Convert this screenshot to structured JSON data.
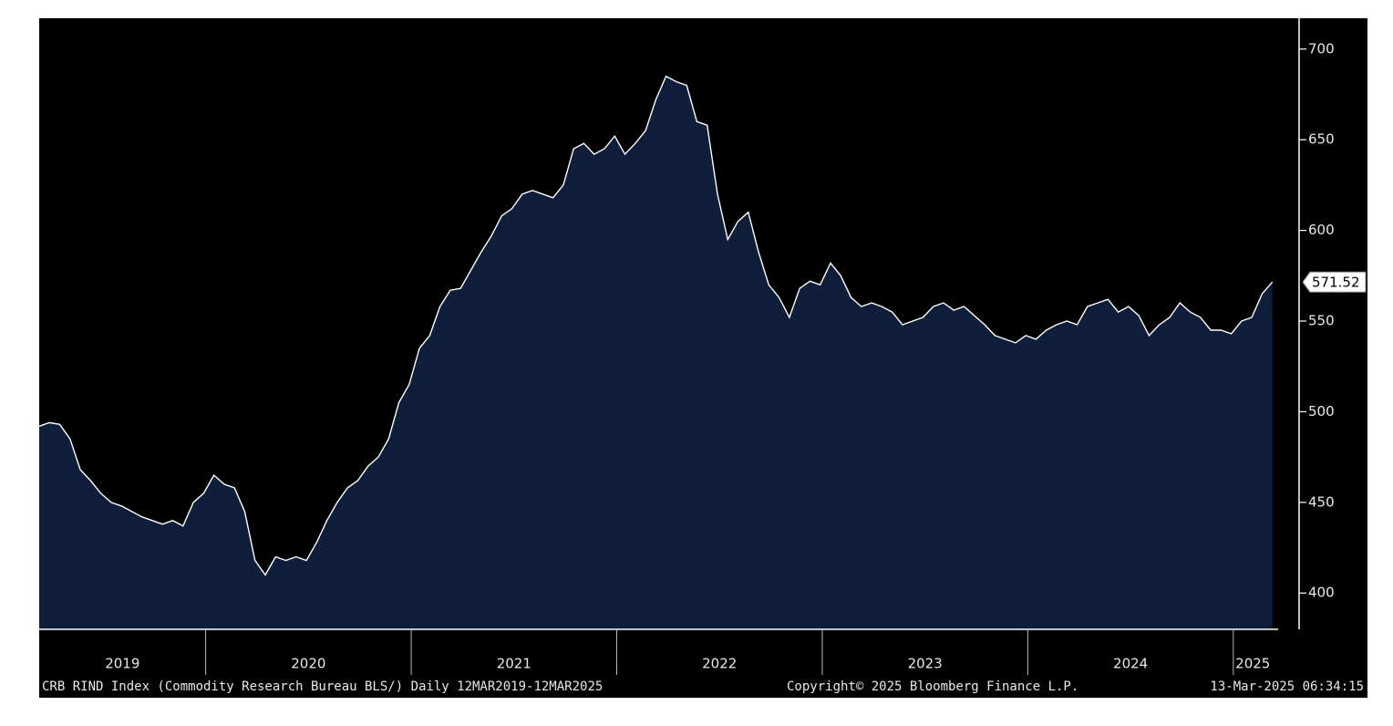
{
  "chart_data": {
    "type": "area",
    "source": "CRB RIND Index (Commodity Research Bureau BLS/)  Daily 12MAR2019-12MAR2025",
    "copyright": "Copyright© 2025 Bloomberg Finance L.P.",
    "timestamp": "13-Mar-2025 06:34:15",
    "x": [
      2019.19,
      2019.24,
      2019.29,
      2019.34,
      2019.39,
      2019.44,
      2019.49,
      2019.54,
      2019.59,
      2019.64,
      2019.69,
      2019.74,
      2019.79,
      2019.84,
      2019.89,
      2019.94,
      2019.99,
      2020.04,
      2020.09,
      2020.14,
      2020.19,
      2020.24,
      2020.29,
      2020.34,
      2020.39,
      2020.44,
      2020.49,
      2020.54,
      2020.59,
      2020.64,
      2020.69,
      2020.74,
      2020.79,
      2020.84,
      2020.89,
      2020.94,
      2020.99,
      2021.04,
      2021.09,
      2021.14,
      2021.19,
      2021.24,
      2021.29,
      2021.34,
      2021.39,
      2021.44,
      2021.49,
      2021.54,
      2021.59,
      2021.64,
      2021.69,
      2021.74,
      2021.79,
      2021.84,
      2021.89,
      2021.94,
      2021.99,
      2022.04,
      2022.09,
      2022.14,
      2022.19,
      2022.24,
      2022.29,
      2022.34,
      2022.39,
      2022.44,
      2022.49,
      2022.54,
      2022.59,
      2022.64,
      2022.69,
      2022.74,
      2022.79,
      2022.84,
      2022.89,
      2022.94,
      2022.99,
      2023.04,
      2023.09,
      2023.14,
      2023.19,
      2023.24,
      2023.29,
      2023.34,
      2023.39,
      2023.44,
      2023.49,
      2023.54,
      2023.59,
      2023.64,
      2023.69,
      2023.74,
      2023.79,
      2023.84,
      2023.89,
      2023.94,
      2023.99,
      2024.04,
      2024.09,
      2024.14,
      2024.19,
      2024.24,
      2024.29,
      2024.34,
      2024.39,
      2024.44,
      2024.49,
      2024.54,
      2024.59,
      2024.64,
      2024.69,
      2024.74,
      2024.79,
      2024.84,
      2024.89,
      2024.94,
      2024.99,
      2025.04,
      2025.09,
      2025.14,
      2025.19
    ],
    "values": [
      492,
      494,
      493,
      485,
      468,
      462,
      455,
      450,
      448,
      445,
      442,
      440,
      438,
      440,
      437,
      450,
      455,
      465,
      460,
      458,
      445,
      418,
      410,
      420,
      418,
      420,
      418,
      428,
      440,
      450,
      458,
      462,
      470,
      475,
      485,
      505,
      515,
      535,
      542,
      558,
      567,
      568,
      578,
      588,
      597,
      608,
      612,
      620,
      622,
      620,
      618,
      625,
      645,
      648,
      642,
      645,
      652,
      642,
      648,
      655,
      672,
      685,
      682,
      680,
      660,
      658,
      620,
      595,
      605,
      610,
      588,
      570,
      563,
      552,
      568,
      572,
      570,
      582,
      575,
      563,
      558,
      560,
      558,
      555,
      548,
      550,
      552,
      558,
      560,
      556,
      558,
      553,
      548,
      542,
      540,
      538,
      542,
      540,
      545,
      548,
      550,
      548,
      558,
      560,
      562,
      555,
      558,
      553,
      542,
      548,
      552,
      560,
      555,
      552,
      545,
      545,
      543,
      550,
      552,
      565,
      571.52
    ],
    "fill_color": "#0f1e3b",
    "line_color": "#ffffff",
    "xlim": [
      2019.19,
      2025.32
    ],
    "xticks": [
      2020,
      2021,
      2022,
      2023,
      2024,
      2025
    ],
    "year_labels": [
      "2019",
      "2020",
      "2021",
      "2022",
      "2023",
      "2024",
      "2025"
    ],
    "ylim": [
      380,
      717
    ],
    "yticks": [
      400,
      450,
      500,
      550,
      600,
      650,
      700
    ],
    "last_value_label": true
  }
}
